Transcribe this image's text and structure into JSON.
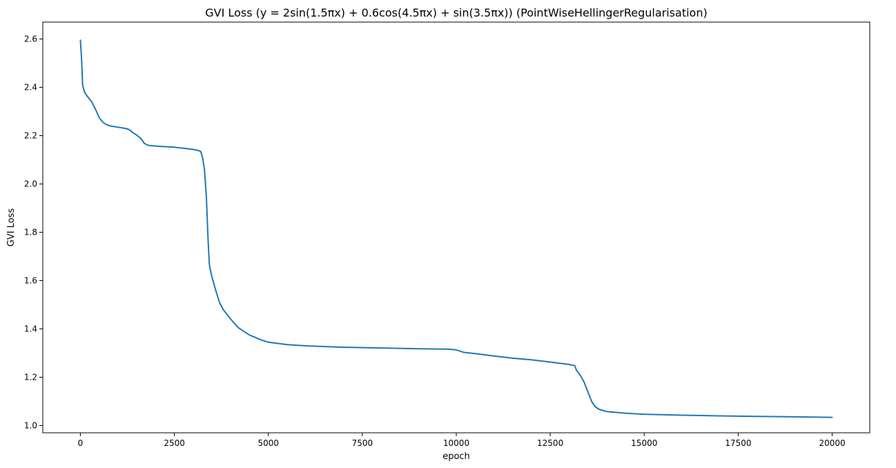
{
  "chart_data": {
    "type": "line",
    "title": "GVI Loss (y = 2sin(1.5πx) + 0.6cos(4.5πx) + sin(3.5πx)) (PointWiseHellingerRegularisation)",
    "xlabel": "epoch",
    "ylabel": "GVI Loss",
    "xlim": [
      -1000,
      21000
    ],
    "ylim": [
      0.97,
      2.67
    ],
    "xticks": [
      0,
      2500,
      5000,
      7500,
      10000,
      12500,
      15000,
      17500,
      20000
    ],
    "xtick_labels": [
      "0",
      "2500",
      "5000",
      "7500",
      "10000",
      "12500",
      "15000",
      "17500",
      "20000"
    ],
    "yticks": [
      1.0,
      1.2,
      1.4,
      1.6,
      1.8,
      2.0,
      2.2,
      2.4,
      2.6
    ],
    "ytick_labels": [
      "1.0",
      "1.2",
      "1.4",
      "1.6",
      "1.8",
      "2.0",
      "2.2",
      "2.4",
      "2.6"
    ],
    "grid": false,
    "color": "#1f77b4",
    "series": [
      {
        "x": [
          0,
          30,
          60,
          100,
          150,
          200,
          300,
          400,
          500,
          600,
          700,
          800,
          1000,
          1200,
          1300,
          1400,
          1500,
          1600,
          1650,
          1700,
          1800,
          2000,
          2500,
          2800,
          3000,
          3100,
          3200,
          3250,
          3300,
          3350,
          3400,
          3430,
          3450,
          3500,
          3600,
          3700,
          3800,
          4000,
          4200,
          4500,
          4800,
          5000,
          5500,
          6000,
          7000,
          8000,
          9000,
          9800,
          10000,
          10100,
          10200,
          10500,
          11000,
          11500,
          12000,
          12500,
          13000,
          13150,
          13200,
          13300,
          13400,
          13500,
          13600,
          13700,
          13800,
          14000,
          14500,
          15000,
          16000,
          17000,
          18000,
          19000,
          20000
        ],
        "y": [
          2.595,
          2.52,
          2.41,
          2.385,
          2.37,
          2.36,
          2.34,
          2.31,
          2.275,
          2.255,
          2.245,
          2.24,
          2.235,
          2.23,
          2.225,
          2.212,
          2.202,
          2.19,
          2.18,
          2.168,
          2.16,
          2.157,
          2.152,
          2.147,
          2.143,
          2.14,
          2.135,
          2.11,
          2.06,
          1.95,
          1.76,
          1.67,
          1.65,
          1.615,
          1.56,
          1.51,
          1.48,
          1.44,
          1.405,
          1.375,
          1.355,
          1.345,
          1.335,
          1.33,
          1.324,
          1.321,
          1.318,
          1.316,
          1.313,
          1.308,
          1.303,
          1.298,
          1.288,
          1.279,
          1.272,
          1.263,
          1.253,
          1.248,
          1.228,
          1.208,
          1.18,
          1.14,
          1.1,
          1.077,
          1.067,
          1.058,
          1.051,
          1.047,
          1.043,
          1.04,
          1.038,
          1.036,
          1.034
        ]
      }
    ]
  }
}
